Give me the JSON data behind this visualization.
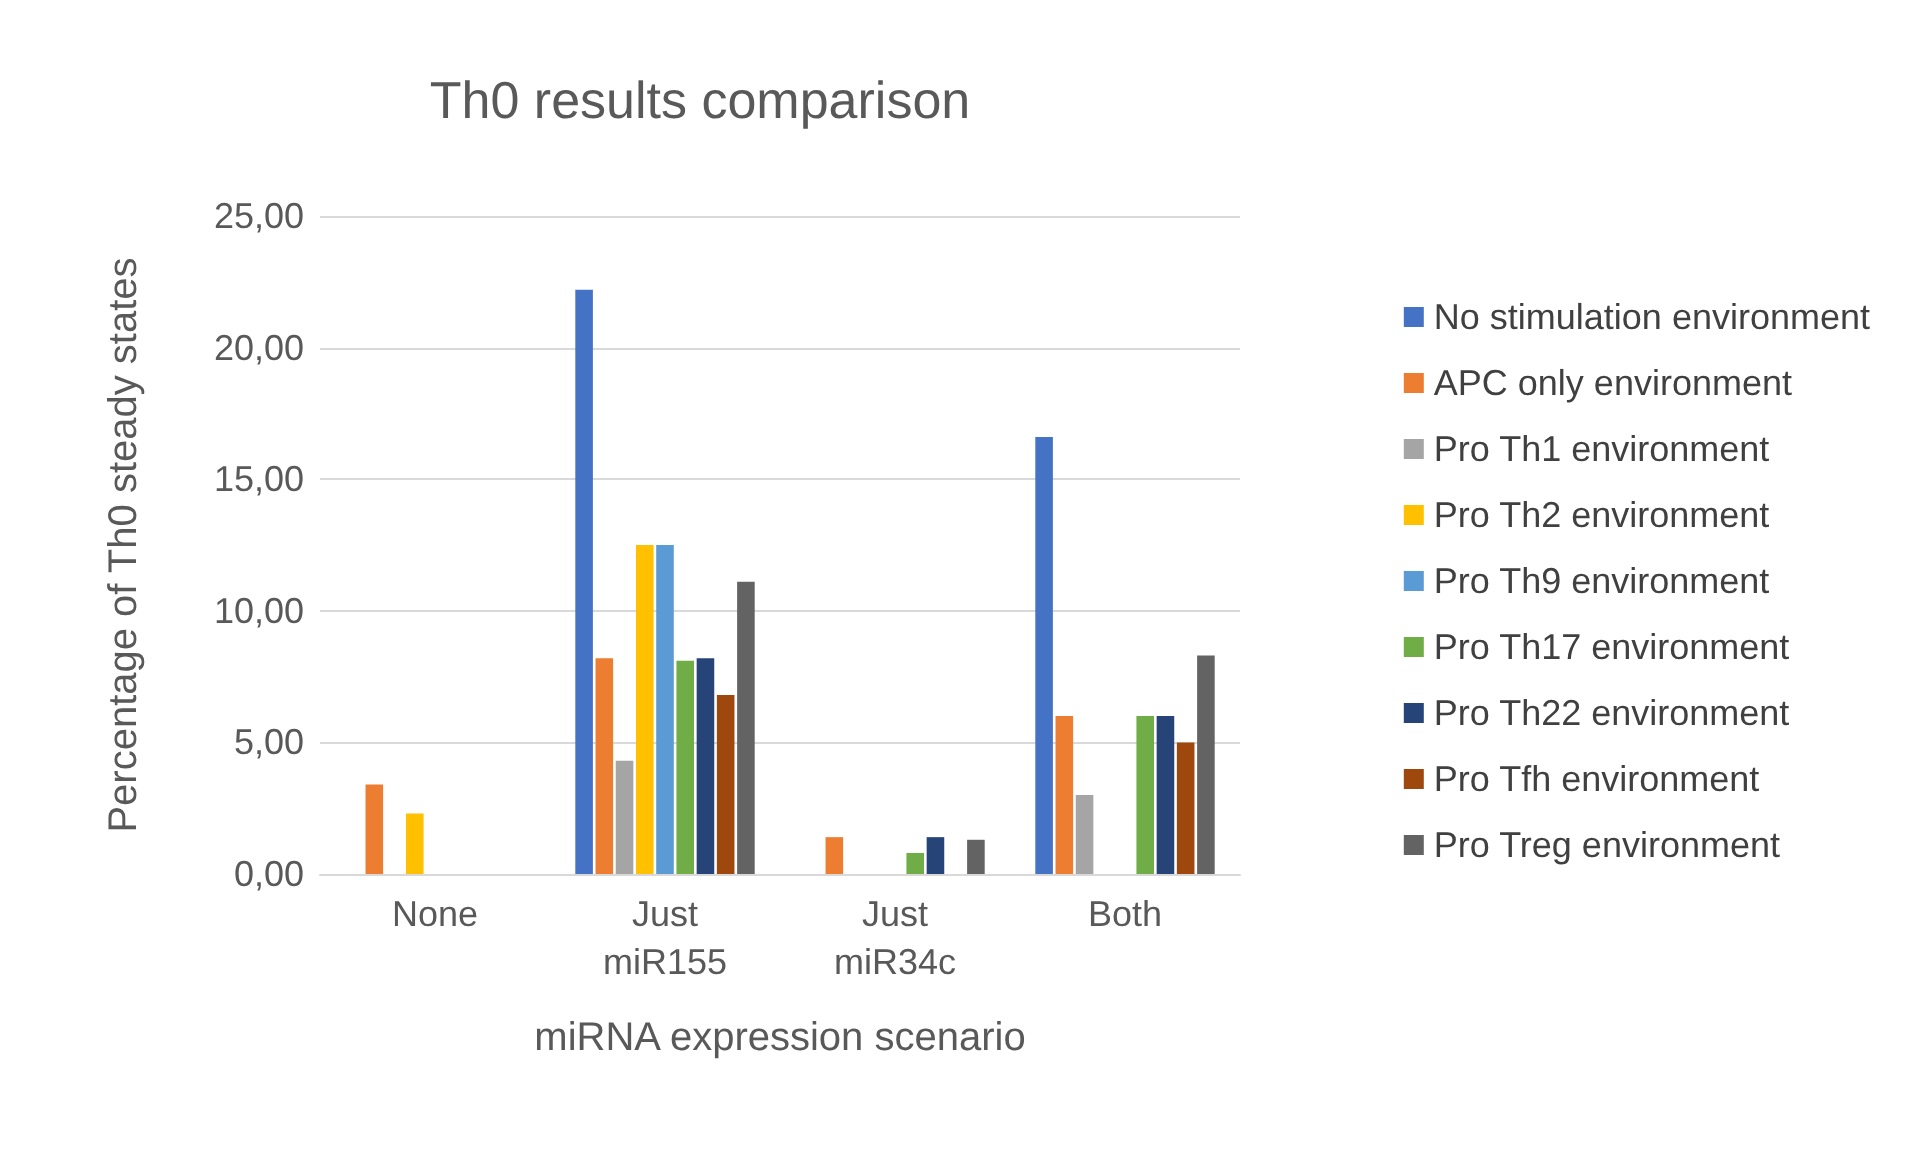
{
  "chart_data": {
    "type": "bar",
    "title": "Th0 results comparison",
    "xlabel": "miRNA expression scenario",
    "ylabel": "Percentage of Th0 steady states",
    "categories": [
      "None",
      "Just\nmiR155",
      "Just\nmiR34c",
      "Both"
    ],
    "series": [
      {
        "name": "No stimulation environment",
        "color": "#4472c4",
        "values": [
          null,
          22.2,
          null,
          16.6
        ]
      },
      {
        "name": "APC only environment",
        "color": "#ed7d31",
        "values": [
          3.4,
          8.2,
          1.4,
          6.0
        ]
      },
      {
        "name": "Pro Th1 environment",
        "color": "#a5a5a5",
        "values": [
          null,
          4.3,
          null,
          3.0
        ]
      },
      {
        "name": "Pro Th2 environment",
        "color": "#ffc000",
        "values": [
          2.3,
          12.5,
          null,
          null
        ]
      },
      {
        "name": "Pro Th9 environment",
        "color": "#5b9bd5",
        "values": [
          null,
          12.5,
          null,
          null
        ]
      },
      {
        "name": "Pro Th17 environment",
        "color": "#70ad47",
        "values": [
          null,
          8.1,
          0.8,
          6.0
        ]
      },
      {
        "name": "Pro Th22 environment",
        "color": "#264478",
        "values": [
          null,
          8.2,
          1.4,
          6.0
        ]
      },
      {
        "name": "Pro Tfh environment",
        "color": "#9e480e",
        "values": [
          null,
          6.8,
          null,
          5.0
        ]
      },
      {
        "name": "Pro Treg environment",
        "color": "#636363",
        "values": [
          null,
          11.1,
          1.3,
          8.3
        ]
      }
    ],
    "ylim": [
      0,
      25
    ],
    "yticks": [
      {
        "value": 0,
        "label": "0,00"
      },
      {
        "value": 5,
        "label": "5,00"
      },
      {
        "value": 10,
        "label": "10,00"
      },
      {
        "value": 15,
        "label": "15,00"
      },
      {
        "value": 20,
        "label": "20,00"
      },
      {
        "value": 25,
        "label": "25,00"
      }
    ],
    "grid": "y",
    "legend": "right"
  }
}
